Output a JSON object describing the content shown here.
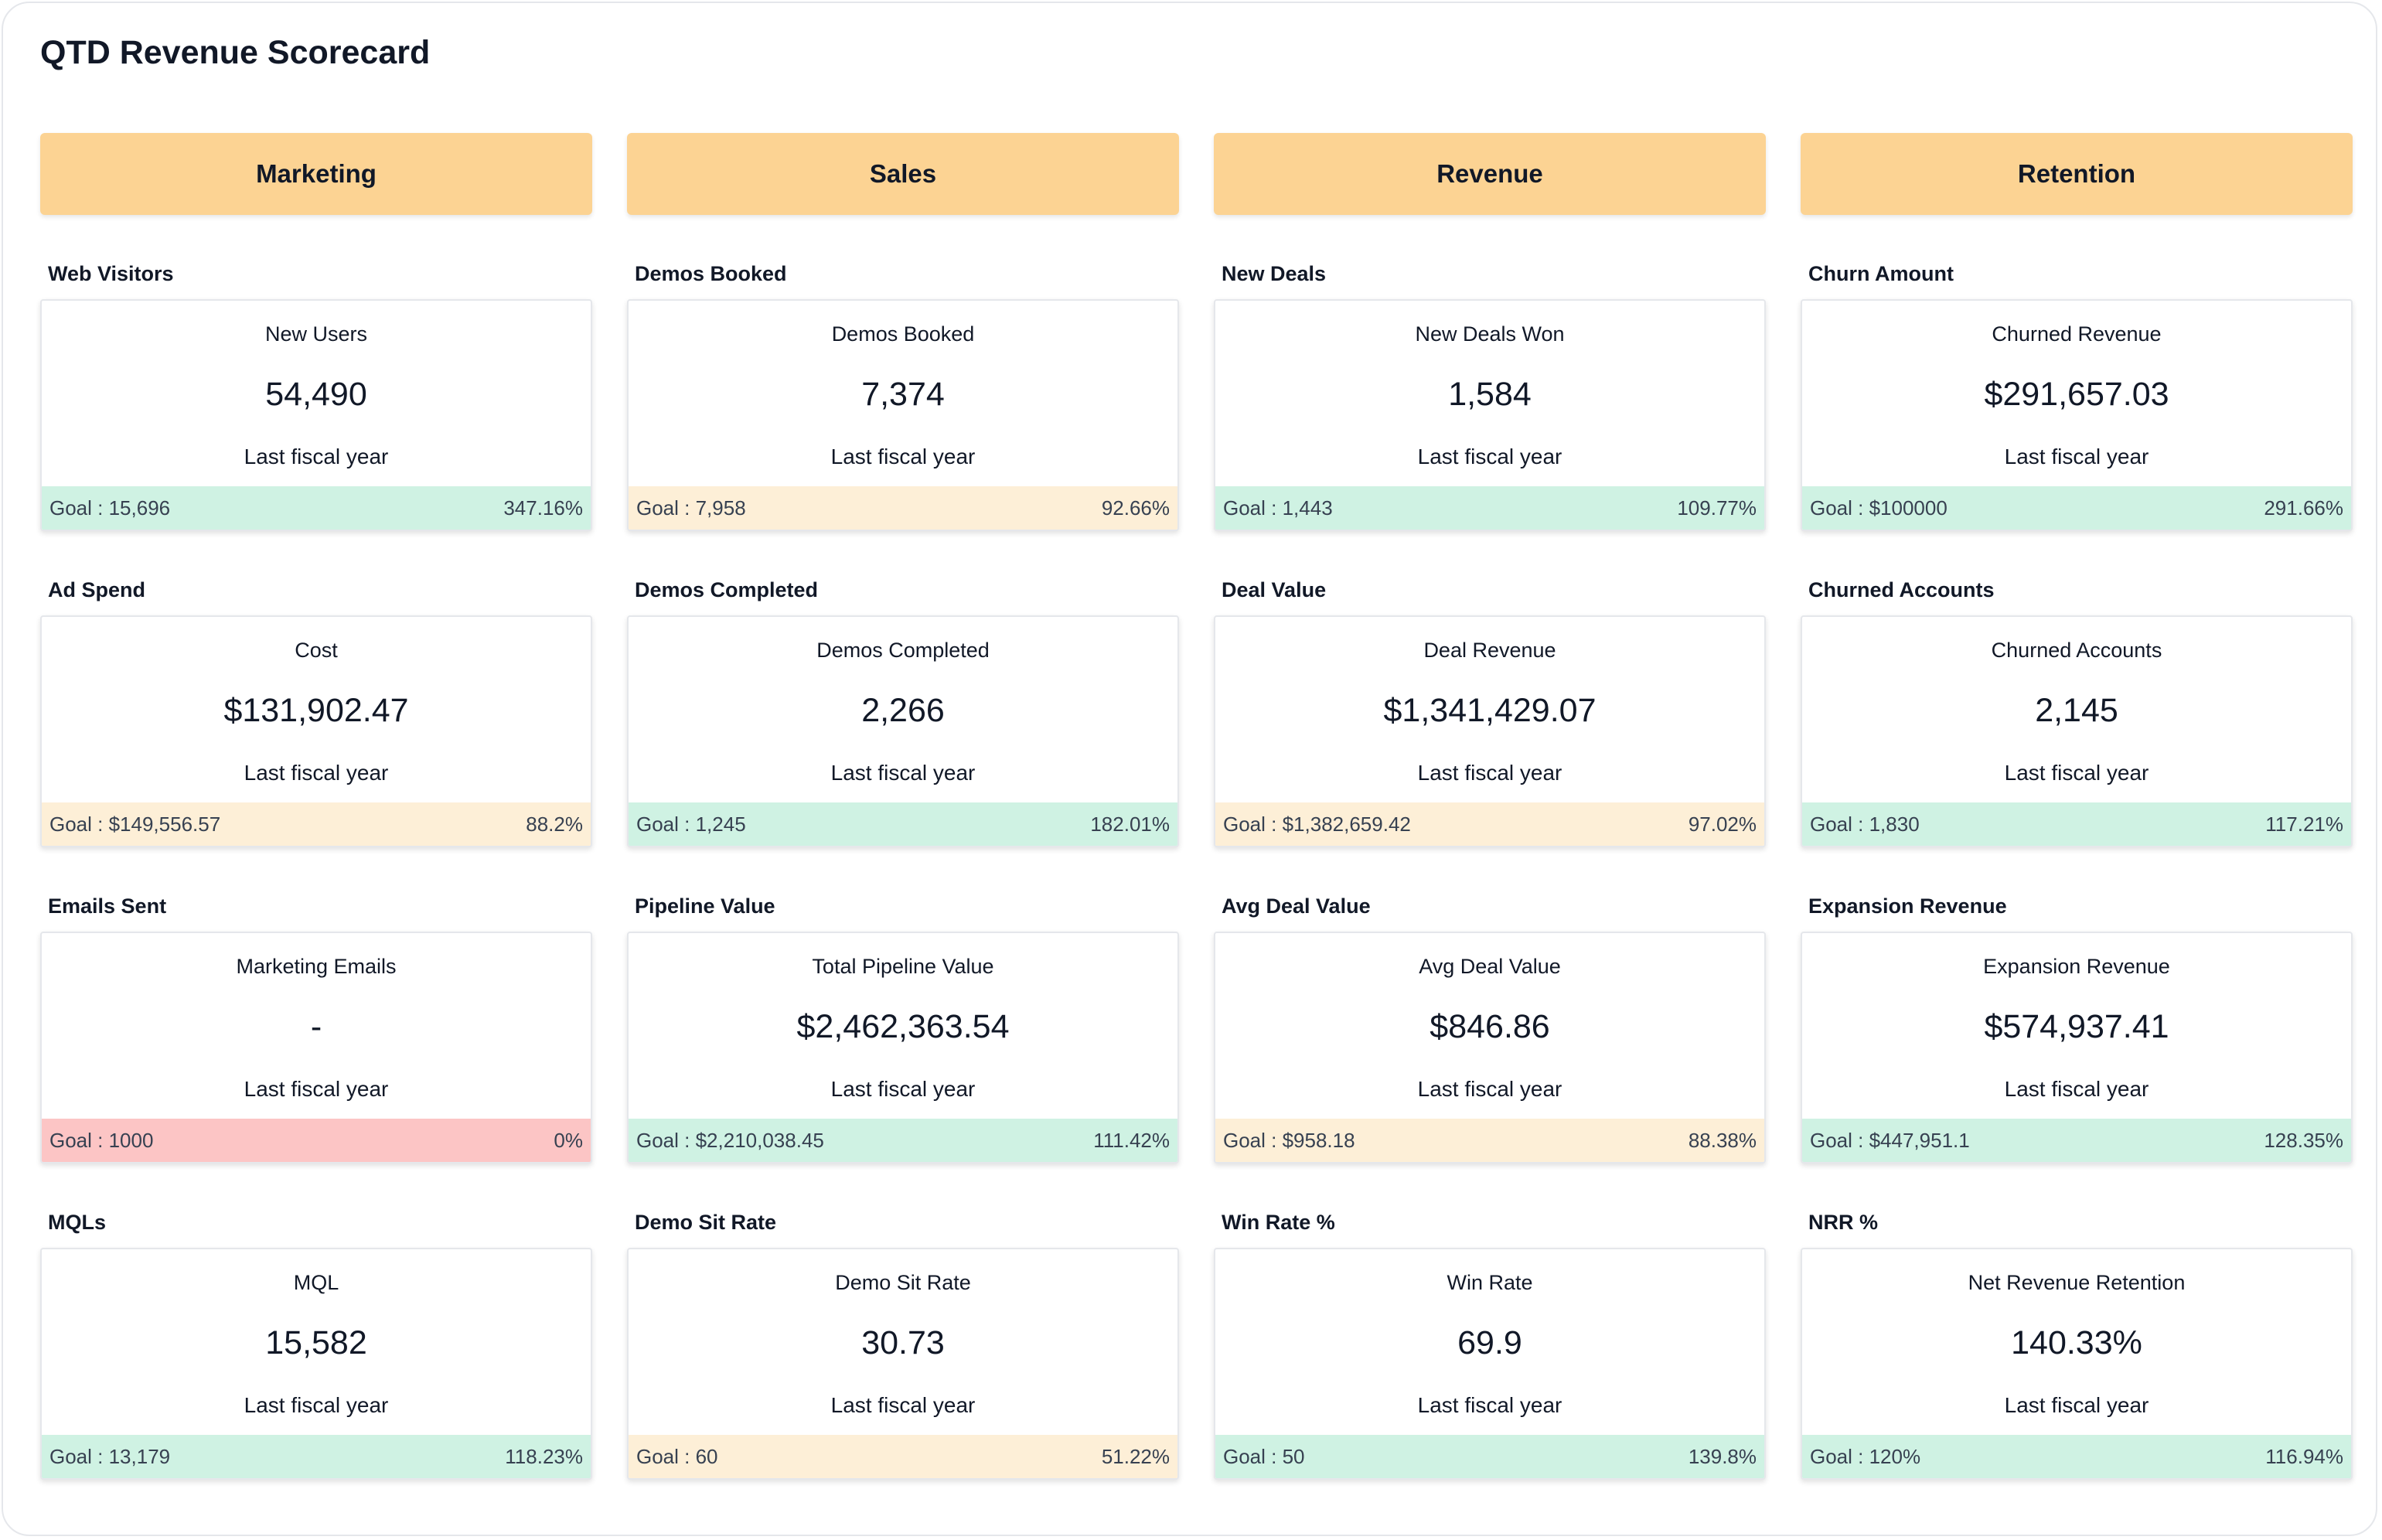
{
  "dashboard": {
    "title": "QTD Revenue Scorecard"
  },
  "colors": {
    "header_bg": "#fcd393",
    "good": "#cff2e3",
    "warn": "#fdefd7",
    "bad": "#fcc5c5"
  },
  "columns": [
    {
      "header": "Marketing",
      "metrics": [
        {
          "title": "Web Visitors",
          "label": "New Users",
          "value": "54,490",
          "period": "Last fiscal year",
          "goal": "Goal : 15,696",
          "pct": "347.16%",
          "status": "good"
        },
        {
          "title": "Ad Spend",
          "label": "Cost",
          "value": "$131,902.47",
          "period": "Last fiscal year",
          "goal": "Goal : $149,556.57",
          "pct": "88.2%",
          "status": "warn"
        },
        {
          "title": "Emails Sent",
          "label": "Marketing Emails",
          "value": "-",
          "period": "Last fiscal year",
          "goal": "Goal : 1000",
          "pct": "0%",
          "status": "bad"
        },
        {
          "title": "MQLs",
          "label": "MQL",
          "value": "15,582",
          "period": "Last fiscal year",
          "goal": "Goal : 13,179",
          "pct": "118.23%",
          "status": "good"
        }
      ]
    },
    {
      "header": "Sales",
      "metrics": [
        {
          "title": "Demos Booked",
          "label": "Demos Booked",
          "value": "7,374",
          "period": "Last fiscal year",
          "goal": "Goal : 7,958",
          "pct": "92.66%",
          "status": "warn"
        },
        {
          "title": "Demos Completed",
          "label": "Demos Completed",
          "value": "2,266",
          "period": "Last fiscal year",
          "goal": "Goal : 1,245",
          "pct": "182.01%",
          "status": "good"
        },
        {
          "title": "Pipeline Value",
          "label": "Total Pipeline Value",
          "value": "$2,462,363.54",
          "period": "Last fiscal year",
          "goal": "Goal : $2,210,038.45",
          "pct": "111.42%",
          "status": "good"
        },
        {
          "title": "Demo Sit Rate",
          "label": "Demo Sit Rate",
          "value": "30.73",
          "period": "Last fiscal year",
          "goal": "Goal : 60",
          "pct": "51.22%",
          "status": "warn"
        }
      ]
    },
    {
      "header": "Revenue",
      "metrics": [
        {
          "title": "New Deals",
          "label": "New Deals Won",
          "value": "1,584",
          "period": "Last fiscal year",
          "goal": "Goal : 1,443",
          "pct": "109.77%",
          "status": "good"
        },
        {
          "title": "Deal Value",
          "label": "Deal Revenue",
          "value": "$1,341,429.07",
          "period": "Last fiscal year",
          "goal": "Goal : $1,382,659.42",
          "pct": "97.02%",
          "status": "warn"
        },
        {
          "title": "Avg Deal Value",
          "label": "Avg Deal Value",
          "value": "$846.86",
          "period": "Last fiscal year",
          "goal": "Goal : $958.18",
          "pct": "88.38%",
          "status": "warn"
        },
        {
          "title": "Win Rate %",
          "label": "Win Rate",
          "value": "69.9",
          "period": "Last fiscal year",
          "goal": "Goal : 50",
          "pct": "139.8%",
          "status": "good"
        }
      ]
    },
    {
      "header": "Retention",
      "metrics": [
        {
          "title": "Churn Amount",
          "label": "Churned Revenue",
          "value": "$291,657.03",
          "period": "Last fiscal year",
          "goal": "Goal : $100000",
          "pct": "291.66%",
          "status": "good"
        },
        {
          "title": "Churned Accounts",
          "label": "Churned Accounts",
          "value": "2,145",
          "period": "Last fiscal year",
          "goal": "Goal : 1,830",
          "pct": "117.21%",
          "status": "good"
        },
        {
          "title": "Expansion Revenue",
          "label": "Expansion Revenue",
          "value": "$574,937.41",
          "period": "Last fiscal year",
          "goal": "Goal : $447,951.1",
          "pct": "128.35%",
          "status": "good"
        },
        {
          "title": "NRR %",
          "label": "Net Revenue Retention",
          "value": "140.33%",
          "period": "Last fiscal year",
          "goal": "Goal : 120%",
          "pct": "116.94%",
          "status": "good"
        }
      ]
    }
  ]
}
